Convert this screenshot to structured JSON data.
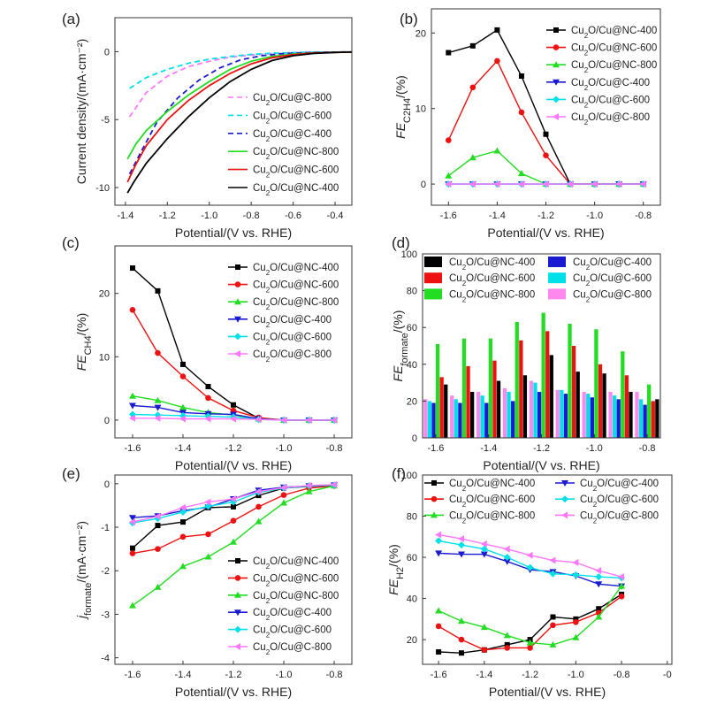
{
  "chart_data": [
    {
      "panel": "(a)",
      "type": "line",
      "xlabel": "Potential/(V vs. RHE)",
      "ylabel": "Current density/(mA·cm⁻²)",
      "xlim": [
        -1.45,
        -0.32
      ],
      "ylim": [
        -11.3,
        2.5
      ],
      "xticks": [
        -1.4,
        -1.2,
        -1.0,
        -0.8,
        -0.6,
        -0.4
      ],
      "yticks": [
        -10,
        -5,
        0
      ],
      "legend_position": "lower-right",
      "series": [
        {
          "name": "Cu₂O/Cu@C-800",
          "color": "#ff77ff",
          "dash": "6,4",
          "x": [
            -1.38,
            -1.3,
            -1.2,
            -1.1,
            -1.0,
            -0.9,
            -0.8,
            -0.7,
            -0.6,
            -0.5,
            -0.4,
            -0.32
          ],
          "y": [
            -4.8,
            -3.0,
            -1.8,
            -1.1,
            -0.7,
            -0.4,
            -0.25,
            -0.15,
            -0.08,
            -0.05,
            -0.03,
            -0.02
          ]
        },
        {
          "name": "Cu₂O/Cu@C-600",
          "color": "#00e0e8",
          "dash": "6,4",
          "x": [
            -1.38,
            -1.3,
            -1.2,
            -1.1,
            -1.0,
            -0.9,
            -0.8,
            -0.7,
            -0.6,
            -0.5,
            -0.4,
            -0.32
          ],
          "y": [
            -2.7,
            -1.9,
            -1.3,
            -0.85,
            -0.55,
            -0.35,
            -0.2,
            -0.12,
            -0.07,
            -0.04,
            -0.03,
            -0.02
          ]
        },
        {
          "name": "Cu₂O/Cu@C-400",
          "color": "#1a1ad0",
          "dash": "6,4",
          "x": [
            -1.38,
            -1.33,
            -1.25,
            -1.15,
            -1.05,
            -0.95,
            -0.85,
            -0.75,
            -0.65,
            -0.55,
            -0.45,
            -0.32
          ],
          "y": [
            -9.0,
            -7.5,
            -5.2,
            -3.4,
            -2.1,
            -1.2,
            -0.6,
            -0.3,
            -0.15,
            -0.08,
            -0.04,
            -0.02
          ]
        },
        {
          "name": "Cu₂O/Cu@NC-800",
          "color": "#22dd22",
          "dash": "",
          "x": [
            -1.39,
            -1.35,
            -1.3,
            -1.2,
            -1.1,
            -1.0,
            -0.9,
            -0.8,
            -0.7,
            -0.6,
            -0.5,
            -0.4,
            -0.32
          ],
          "y": [
            -7.9,
            -6.8,
            -5.8,
            -4.4,
            -3.2,
            -2.2,
            -1.3,
            -0.7,
            -0.35,
            -0.18,
            -0.09,
            -0.05,
            -0.03
          ]
        },
        {
          "name": "Cu₂O/Cu@NC-600",
          "color": "#ee1111",
          "dash": "",
          "x": [
            -1.39,
            -1.35,
            -1.3,
            -1.2,
            -1.1,
            -1.0,
            -0.9,
            -0.8,
            -0.7,
            -0.6,
            -0.5,
            -0.4,
            -0.32
          ],
          "y": [
            -9.6,
            -8.3,
            -6.9,
            -5.0,
            -3.6,
            -2.5,
            -1.6,
            -0.9,
            -0.45,
            -0.22,
            -0.1,
            -0.05,
            -0.03
          ]
        },
        {
          "name": "Cu₂O/Cu@NC-400",
          "color": "#000000",
          "dash": "",
          "x": [
            -1.39,
            -1.36,
            -1.3,
            -1.2,
            -1.1,
            -1.0,
            -0.9,
            -0.8,
            -0.7,
            -0.6,
            -0.5,
            -0.4,
            -0.32
          ],
          "y": [
            -10.4,
            -9.6,
            -8.2,
            -6.4,
            -4.8,
            -3.4,
            -2.2,
            -1.3,
            -0.65,
            -0.3,
            -0.13,
            -0.06,
            -0.03
          ]
        }
      ]
    },
    {
      "panel": "(b)",
      "type": "line",
      "xlabel": "Potential/(V vs. RHE)",
      "ylabel": "FE",
      "ylabel_sub": "C2H4",
      "ylabel_unit": "/(%)",
      "xlim": [
        -1.67,
        -0.73
      ],
      "ylim": [
        -2.8,
        23.2
      ],
      "xticks": [
        -1.6,
        -1.4,
        -1.2,
        -1.0,
        -0.8
      ],
      "yticks": [
        0,
        10,
        20
      ],
      "legend_position": "top-right",
      "x": [
        -1.6,
        -1.5,
        -1.4,
        -1.3,
        -1.2,
        -1.1,
        -1.0,
        -0.9,
        -0.8
      ],
      "series": [
        {
          "name": "Cu₂O/Cu@NC-400",
          "color": "#000000",
          "marker": "square",
          "values": [
            17.4,
            18.3,
            20.4,
            14.3,
            6.6,
            0,
            0,
            0,
            0
          ]
        },
        {
          "name": "Cu₂O/Cu@NC-600",
          "color": "#ee1111",
          "marker": "circle",
          "values": [
            5.8,
            12.8,
            16.3,
            9.5,
            3.8,
            0,
            0,
            0,
            0
          ]
        },
        {
          "name": "Cu₂O/Cu@NC-800",
          "color": "#22dd22",
          "marker": "triangle",
          "values": [
            1.1,
            3.5,
            4.4,
            1.4,
            0,
            0,
            0,
            0,
            0
          ]
        },
        {
          "name": "Cu₂O/Cu@C-400",
          "color": "#1a1ad0",
          "marker": "triangle-down",
          "values": [
            0,
            0,
            0,
            0,
            0,
            0,
            0,
            0,
            0
          ]
        },
        {
          "name": "Cu₂O/Cu@C-600",
          "color": "#00e0e8",
          "marker": "diamond",
          "values": [
            0,
            0,
            0,
            0,
            0,
            0,
            0,
            0,
            0
          ]
        },
        {
          "name": "Cu₂O/Cu@C-800",
          "color": "#ff77ff",
          "marker": "triangle-left",
          "values": [
            0,
            0,
            0,
            0,
            0,
            0,
            0,
            0,
            0
          ]
        }
      ]
    },
    {
      "panel": "(c)",
      "type": "line",
      "xlabel": "Potential/(V vs. RHE)",
      "ylabel": "FE",
      "ylabel_sub": "CH4",
      "ylabel_unit": "/(%)",
      "xlim": [
        -1.67,
        -0.73
      ],
      "ylim": [
        -2.8,
        27.5
      ],
      "xticks": [
        -1.6,
        -1.4,
        -1.2,
        -1.0,
        -0.8
      ],
      "yticks": [
        0,
        10,
        20
      ],
      "legend_position": "top-right",
      "x": [
        -1.6,
        -1.5,
        -1.4,
        -1.3,
        -1.2,
        -1.1,
        -1.0,
        -0.9,
        -0.8
      ],
      "series": [
        {
          "name": "Cu₂O/Cu@NC-400",
          "color": "#000000",
          "marker": "square",
          "values": [
            24.0,
            20.4,
            8.8,
            5.3,
            2.4,
            0.3,
            0,
            0,
            0
          ]
        },
        {
          "name": "Cu₂O/Cu@NC-600",
          "color": "#ee1111",
          "marker": "circle",
          "values": [
            17.4,
            10.6,
            6.9,
            3.5,
            1.5,
            0.4,
            0,
            0,
            0
          ]
        },
        {
          "name": "Cu₂O/Cu@NC-800",
          "color": "#22dd22",
          "marker": "triangle",
          "values": [
            3.8,
            3.1,
            2.0,
            1.2,
            0.8,
            0.2,
            0,
            0,
            0
          ]
        },
        {
          "name": "Cu₂O/Cu@C-400",
          "color": "#1a1ad0",
          "marker": "triangle-down",
          "values": [
            2.3,
            2.0,
            1.2,
            1.0,
            0.9,
            0.2,
            0,
            0,
            0
          ]
        },
        {
          "name": "Cu₂O/Cu@C-600",
          "color": "#00e0e8",
          "marker": "diamond",
          "values": [
            0.9,
            0.8,
            0.7,
            0.6,
            0.5,
            0.1,
            0,
            0,
            0
          ]
        },
        {
          "name": "Cu₂O/Cu@C-800",
          "color": "#ff77ff",
          "marker": "triangle-left",
          "values": [
            0.3,
            0.3,
            0.2,
            0.2,
            0.2,
            0.1,
            0,
            0,
            0
          ]
        }
      ]
    },
    {
      "panel": "(d)",
      "type": "bar",
      "xlabel": "Potential/(V vs. RHE)",
      "ylabel": "FE",
      "ylabel_sub": "formate",
      "ylabel_unit": "/(%)",
      "xlim": [
        -1.65,
        -0.75
      ],
      "ylim": [
        0,
        100
      ],
      "xticks": [
        -1.6,
        -1.4,
        -1.2,
        -1.0,
        -0.8
      ],
      "yticks": [
        0,
        20,
        40,
        60,
        80,
        100
      ],
      "legend_position": "top",
      "x": [
        -1.6,
        -1.5,
        -1.4,
        -1.3,
        -1.2,
        -1.1,
        -1.0,
        -0.9,
        -0.8
      ],
      "bar_order": [
        "Cu₂O/Cu@C-800",
        "Cu₂O/Cu@C-600",
        "Cu₂O/Cu@C-400",
        "Cu₂O/Cu@NC-800",
        "Cu₂O/Cu@NC-600",
        "Cu₂O/Cu@NC-400"
      ],
      "series": [
        {
          "name": "Cu₂O/Cu@NC-400",
          "color": "#000000",
          "values": [
            29,
            25,
            31,
            34,
            45,
            36,
            35,
            25,
            21
          ]
        },
        {
          "name": "Cu₂O/Cu@C-400",
          "color": "#1a1ad0",
          "values": [
            19,
            19,
            19,
            20,
            25,
            24,
            22,
            21,
            18
          ]
        },
        {
          "name": "Cu₂O/Cu@NC-600",
          "color": "#ee1111",
          "values": [
            33,
            39,
            42,
            53,
            58,
            50,
            40,
            34,
            20
          ]
        },
        {
          "name": "Cu₂O/Cu@C-600",
          "color": "#00e0e8",
          "values": [
            20,
            21,
            23,
            25,
            30,
            26,
            24,
            23,
            21
          ]
        },
        {
          "name": "Cu₂O/Cu@NC-800",
          "color": "#22dd22",
          "values": [
            51,
            54,
            54,
            63,
            68,
            62,
            59,
            47,
            29
          ]
        },
        {
          "name": "Cu₂O/Cu@C-800",
          "color": "#ff88ee",
          "values": [
            21,
            23,
            25,
            27,
            31,
            26,
            25,
            25,
            25
          ]
        }
      ]
    },
    {
      "panel": "(e)",
      "type": "line",
      "xlabel": "Potential/(V vs. RHE)",
      "ylabel": "j",
      "ylabel_sub": "formate",
      "ylabel_unit": "/(mA·cm⁻²)",
      "xlim": [
        -1.67,
        -0.73
      ],
      "ylim": [
        -4.15,
        0.2
      ],
      "xticks": [
        -1.6,
        -1.4,
        -1.2,
        -1.0,
        -0.8
      ],
      "yticks": [
        -4,
        -3,
        -2,
        -1,
        0
      ],
      "legend_position": "bottom-right",
      "x": [
        -1.6,
        -1.5,
        -1.4,
        -1.3,
        -1.2,
        -1.1,
        -1.0,
        -0.9,
        -0.8
      ],
      "series": [
        {
          "name": "Cu₂O/Cu@NC-400",
          "color": "#000000",
          "marker": "square",
          "values": [
            -1.48,
            -0.96,
            -0.88,
            -0.55,
            -0.53,
            -0.27,
            -0.1,
            -0.06,
            -0.04
          ]
        },
        {
          "name": "Cu₂O/Cu@NC-600",
          "color": "#ee1111",
          "marker": "circle",
          "values": [
            -1.6,
            -1.5,
            -1.22,
            -1.16,
            -0.85,
            -0.53,
            -0.26,
            -0.1,
            -0.05
          ]
        },
        {
          "name": "Cu₂O/Cu@NC-800",
          "color": "#22dd22",
          "marker": "triangle",
          "values": [
            -2.8,
            -2.38,
            -1.9,
            -1.68,
            -1.34,
            -0.87,
            -0.44,
            -0.18,
            -0.05
          ]
        },
        {
          "name": "Cu₂O/Cu@C-400",
          "color": "#1a1ad0",
          "marker": "triangle-down",
          "values": [
            -0.78,
            -0.74,
            -0.62,
            -0.54,
            -0.35,
            -0.15,
            -0.08,
            -0.05,
            -0.03
          ]
        },
        {
          "name": "Cu₂O/Cu@C-600",
          "color": "#00e0e8",
          "marker": "diamond",
          "values": [
            -0.9,
            -0.8,
            -0.65,
            -0.52,
            -0.42,
            -0.2,
            -0.1,
            -0.05,
            -0.03
          ]
        },
        {
          "name": "Cu₂O/Cu@C-800",
          "color": "#ff77ff",
          "marker": "triangle-left",
          "values": [
            -0.88,
            -0.75,
            -0.55,
            -0.42,
            -0.35,
            -0.18,
            -0.09,
            -0.04,
            -0.02
          ]
        }
      ]
    },
    {
      "panel": "(f)",
      "type": "line",
      "xlabel": "Potential/(V vs. RHE)",
      "ylabel": "FE",
      "ylabel_sub": "H2",
      "ylabel_unit": "/(%)",
      "xlim": [
        -1.67,
        -0.58
      ],
      "ylim": [
        8,
        100
      ],
      "xticks": [
        -1.6,
        -1.4,
        -1.2,
        -1.0,
        -0.8,
        -0.6
      ],
      "xtick_labels": [
        "-1.6",
        "-1.4",
        "-1.2",
        "-1.0",
        "-0.8",
        "-0"
      ],
      "yticks": [
        20,
        40,
        60,
        80,
        100
      ],
      "legend_position": "top",
      "x": [
        -1.6,
        -1.5,
        -1.4,
        -1.3,
        -1.2,
        -1.1,
        -1.0,
        -0.9,
        -0.8
      ],
      "series": [
        {
          "name": "Cu₂O/Cu@NC-400",
          "color": "#000000",
          "marker": "square",
          "values": [
            14,
            13.5,
            15,
            17.5,
            20,
            31,
            30,
            35,
            42
          ]
        },
        {
          "name": "Cu₂O/Cu@C-400",
          "color": "#1a1ad0",
          "marker": "triangle-down",
          "values": [
            62,
            61.5,
            61.5,
            58,
            54,
            53,
            51,
            47,
            46
          ]
        },
        {
          "name": "Cu₂O/Cu@NC-600",
          "color": "#ee1111",
          "marker": "circle",
          "values": [
            26.5,
            20,
            15,
            16,
            16,
            27,
            28.5,
            33,
            41
          ]
        },
        {
          "name": "Cu₂O/Cu@C-600",
          "color": "#00e0e8",
          "marker": "diamond",
          "values": [
            68,
            66,
            64,
            60,
            55,
            52,
            51.5,
            50.5,
            50
          ]
        },
        {
          "name": "Cu₂O/Cu@NC-800",
          "color": "#22dd22",
          "marker": "triangle",
          "values": [
            34,
            29,
            26,
            22,
            18.5,
            17.5,
            21,
            31,
            46
          ]
        },
        {
          "name": "Cu₂O/Cu@C-800",
          "color": "#ff77ff",
          "marker": "triangle-left",
          "values": [
            71,
            69,
            66.5,
            64,
            61,
            58.5,
            57.5,
            53.5,
            50.5
          ]
        }
      ]
    }
  ]
}
